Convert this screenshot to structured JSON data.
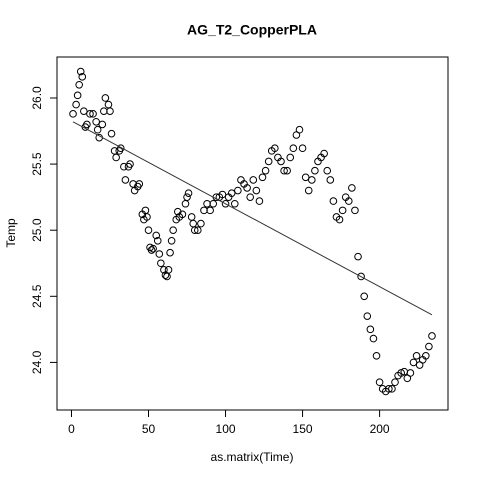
{
  "chart_data": {
    "type": "scatter",
    "title": "AG_T2_CopperPLA",
    "x_label": "as.matrix(Time)",
    "y_label": "Temp",
    "x": [
      1,
      3,
      4,
      5,
      6,
      7,
      8,
      9,
      10,
      12,
      14,
      16,
      17,
      18,
      20,
      21,
      22,
      24,
      25,
      26,
      28,
      29,
      31,
      32,
      34,
      35,
      37,
      38,
      40,
      41,
      43,
      44,
      46,
      47,
      48,
      49,
      50,
      51,
      52,
      53,
      55,
      56,
      57,
      58,
      60,
      61,
      62,
      63,
      64,
      65,
      66,
      68,
      69,
      70,
      72,
      74,
      75,
      76,
      78,
      79,
      80,
      82,
      84,
      86,
      88,
      90,
      92,
      94,
      96,
      98,
      100,
      102,
      104,
      106,
      108,
      110,
      112,
      114,
      116,
      118,
      120,
      122,
      124,
      126,
      128,
      130,
      132,
      134,
      136,
      138,
      140,
      142,
      144,
      146,
      148,
      150,
      152,
      154,
      156,
      158,
      160,
      162,
      164,
      166,
      168,
      170,
      172,
      174,
      176,
      178,
      180,
      182,
      184,
      186,
      188,
      190,
      192,
      194,
      196,
      198,
      200,
      202,
      204,
      206,
      208,
      210,
      212,
      214,
      216,
      218,
      220,
      222,
      224,
      226,
      228,
      230,
      232,
      234
    ],
    "y": [
      25.88,
      25.95,
      26.02,
      26.1,
      26.2,
      26.16,
      25.9,
      25.78,
      25.8,
      25.88,
      25.88,
      25.82,
      25.76,
      25.7,
      25.8,
      25.9,
      26.0,
      25.95,
      25.9,
      25.73,
      25.6,
      25.55,
      25.6,
      25.62,
      25.48,
      25.38,
      25.48,
      25.5,
      25.35,
      25.3,
      25.33,
      25.35,
      25.12,
      25.08,
      25.15,
      25.1,
      25.0,
      24.87,
      24.85,
      24.86,
      24.96,
      24.92,
      24.82,
      24.75,
      24.7,
      24.66,
      24.65,
      24.7,
      24.83,
      24.92,
      25.0,
      25.08,
      25.14,
      25.1,
      25.12,
      25.2,
      25.25,
      25.28,
      25.1,
      25.05,
      25.0,
      25.0,
      25.05,
      25.15,
      25.2,
      25.15,
      25.2,
      25.25,
      25.25,
      25.27,
      25.2,
      25.25,
      25.28,
      25.2,
      25.3,
      25.38,
      25.35,
      25.32,
      25.25,
      25.38,
      25.3,
      25.22,
      25.4,
      25.45,
      25.52,
      25.6,
      25.62,
      25.55,
      25.52,
      25.45,
      25.45,
      25.55,
      25.62,
      25.72,
      25.76,
      25.62,
      25.4,
      25.3,
      25.38,
      25.45,
      25.52,
      25.55,
      25.58,
      25.45,
      25.38,
      25.22,
      25.1,
      25.08,
      25.15,
      25.25,
      25.22,
      25.32,
      25.15,
      24.8,
      24.65,
      24.5,
      24.35,
      24.25,
      24.18,
      24.05,
      23.85,
      23.8,
      23.78,
      23.8,
      23.8,
      23.85,
      23.9,
      23.92,
      23.93,
      23.88,
      23.92,
      24.0,
      24.05,
      23.98,
      24.02,
      24.05,
      24.12,
      24.2
    ],
    "fit": {
      "x": [
        1,
        234
      ],
      "y": [
        25.82,
        24.36
      ]
    },
    "color": "#000000",
    "xlim": [
      -9.4,
      244.4
    ],
    "xticks": [
      0,
      50,
      100,
      150,
      200
    ],
    "ylim": [
      23.64,
      26.31
    ],
    "yticks": [
      {
        "value": 24,
        "label": "24.0"
      },
      {
        "value": 24.5,
        "label": "24.5"
      },
      {
        "value": 25,
        "label": "25.0"
      },
      {
        "value": 25.5,
        "label": "25.5"
      },
      {
        "value": 26,
        "label": "26.0"
      }
    ]
  }
}
